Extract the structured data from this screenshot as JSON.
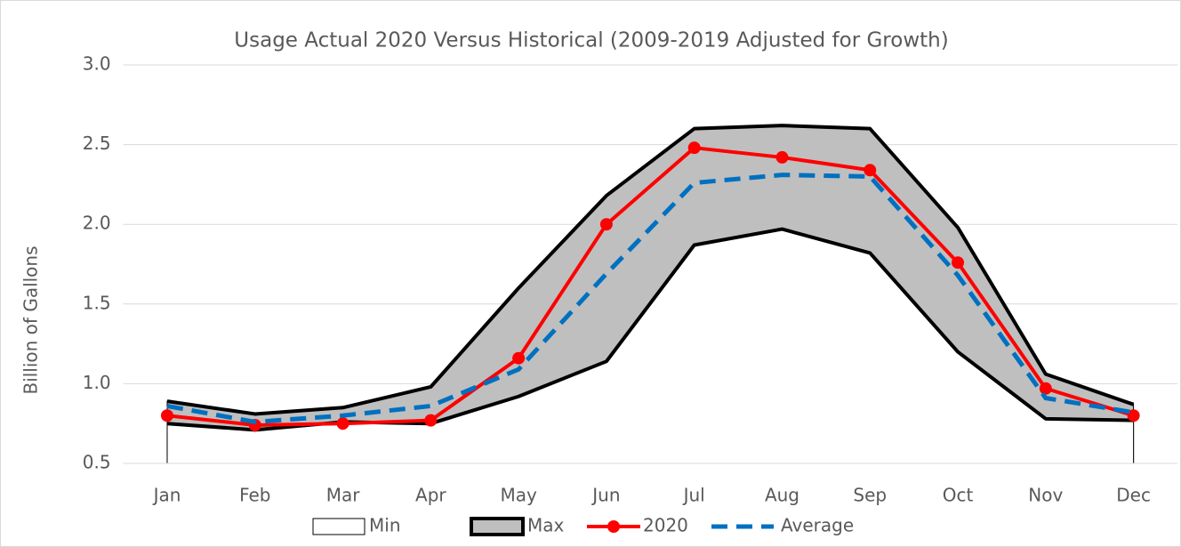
{
  "chart_data": {
    "type": "area-band",
    "title": "Usage Actual 2020 Versus Historical (2009-2019 Adjusted for Growth)",
    "y_label": "Billion of Gallons",
    "categories": [
      "Jan",
      "Feb",
      "Mar",
      "Apr",
      "May",
      "Jun",
      "Jul",
      "Aug",
      "Sep",
      "Oct",
      "Nov",
      "Dec"
    ],
    "series": [
      {
        "name": "Min",
        "color": "#ffffff",
        "kind": "area",
        "values": [
          0.75,
          0.71,
          0.76,
          0.75,
          0.92,
          1.14,
          1.87,
          1.97,
          1.82,
          1.2,
          0.78,
          0.77
        ]
      },
      {
        "name": "Max",
        "color": "#bfbfbf",
        "kind": "area",
        "values": [
          0.89,
          0.81,
          0.85,
          0.98,
          1.6,
          2.18,
          2.6,
          2.62,
          2.6,
          1.98,
          1.06,
          0.87
        ]
      },
      {
        "name": "2020",
        "color": "#ff0000",
        "kind": "line",
        "values": [
          0.8,
          0.74,
          0.75,
          0.77,
          1.16,
          2.0,
          2.48,
          2.42,
          2.34,
          1.76,
          0.97,
          0.8
        ]
      },
      {
        "name": "Average",
        "color": "#0070c0",
        "kind": "dashed",
        "values": [
          0.86,
          0.76,
          0.8,
          0.86,
          1.09,
          1.69,
          2.26,
          2.31,
          2.3,
          1.68,
          0.91,
          0.82
        ]
      }
    ],
    "ylim": [
      0.5,
      3.0
    ],
    "yticks": [
      {
        "value": 0.5,
        "label": "0.5"
      },
      {
        "value": 1.0,
        "label": "1.0"
      },
      {
        "value": 1.5,
        "label": "1.5"
      },
      {
        "value": 2.0,
        "label": "2.0"
      },
      {
        "value": 2.5,
        "label": "2.5"
      },
      {
        "value": 3.0,
        "label": "3.0"
      }
    ],
    "grid": true,
    "legend": "bottom"
  }
}
